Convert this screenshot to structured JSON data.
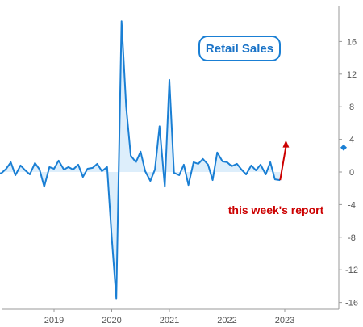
{
  "chart_data": {
    "type": "line",
    "title": "Retail Sales",
    "xlabel": "",
    "ylabel": "",
    "ylim": [
      -17,
      20
    ],
    "yticks": [
      16,
      12,
      8,
      4,
      0,
      -4,
      -8,
      -12,
      -16
    ],
    "ytick_labels": [
      "16",
      "12",
      "8",
      "4",
      "0",
      "-4",
      "-8",
      "-12",
      "-16"
    ],
    "xlim": [
      2018.0,
      2024.1
    ],
    "xticks": [
      2019,
      2020,
      2021,
      2022,
      2023
    ],
    "xtick_labels": [
      "2019",
      "2020",
      "2021",
      "2022",
      "2023"
    ],
    "grid": false,
    "legend": "none",
    "series": [
      {
        "color": "#1a7fd4",
        "x": [
          2018.0,
          2018.08,
          2018.17,
          2018.25,
          2018.33,
          2018.42,
          2018.5,
          2018.58,
          2018.67,
          2018.75,
          2018.83,
          2018.92,
          2019.0,
          2019.08,
          2019.17,
          2019.25,
          2019.33,
          2019.42,
          2019.5,
          2019.58,
          2019.67,
          2019.75,
          2019.83,
          2019.92,
          2020.0,
          2020.08,
          2020.17,
          2020.25,
          2020.33,
          2020.42,
          2020.5,
          2020.58,
          2020.67,
          2020.75,
          2020.83,
          2020.92,
          2021.0,
          2021.08,
          2021.17,
          2021.25,
          2021.33,
          2021.42,
          2021.5,
          2021.58,
          2021.67,
          2021.75,
          2021.83,
          2021.92,
          2022.0,
          2022.08,
          2022.17,
          2022.25,
          2022.33,
          2022.42,
          2022.5,
          2022.58,
          2022.67,
          2022.75,
          2022.83,
          2022.92
        ],
        "values": [
          0.0,
          -0.2,
          0.4,
          1.2,
          -0.4,
          0.8,
          0.2,
          -0.3,
          1.1,
          0.3,
          -1.8,
          0.6,
          0.4,
          1.4,
          0.3,
          0.6,
          0.3,
          0.9,
          -0.6,
          0.4,
          0.5,
          1.0,
          0.1,
          0.6,
          -8.0,
          -15.5,
          18.5,
          8.0,
          2.0,
          1.2,
          2.5,
          0.1,
          -1.1,
          0.3,
          5.6,
          -1.8,
          11.3,
          -0.1,
          -0.4,
          0.9,
          -1.6,
          1.2,
          1.0,
          1.6,
          0.9,
          -1.0,
          2.4,
          1.3,
          1.2,
          0.7,
          1.0,
          0.3,
          -0.3,
          0.8,
          0.2,
          0.9,
          -0.3,
          1.2,
          -0.9,
          -1.0
        ]
      }
    ],
    "last_marker": {
      "x": 2024.05,
      "value": 3.0,
      "color": "#1a7fd4"
    },
    "annotation": {
      "text": "this week's report",
      "color": "#cc0000",
      "arrow_from": [
        2022.92,
        -1.0
      ],
      "arrow_to": [
        2023.02,
        3.5
      ]
    }
  }
}
